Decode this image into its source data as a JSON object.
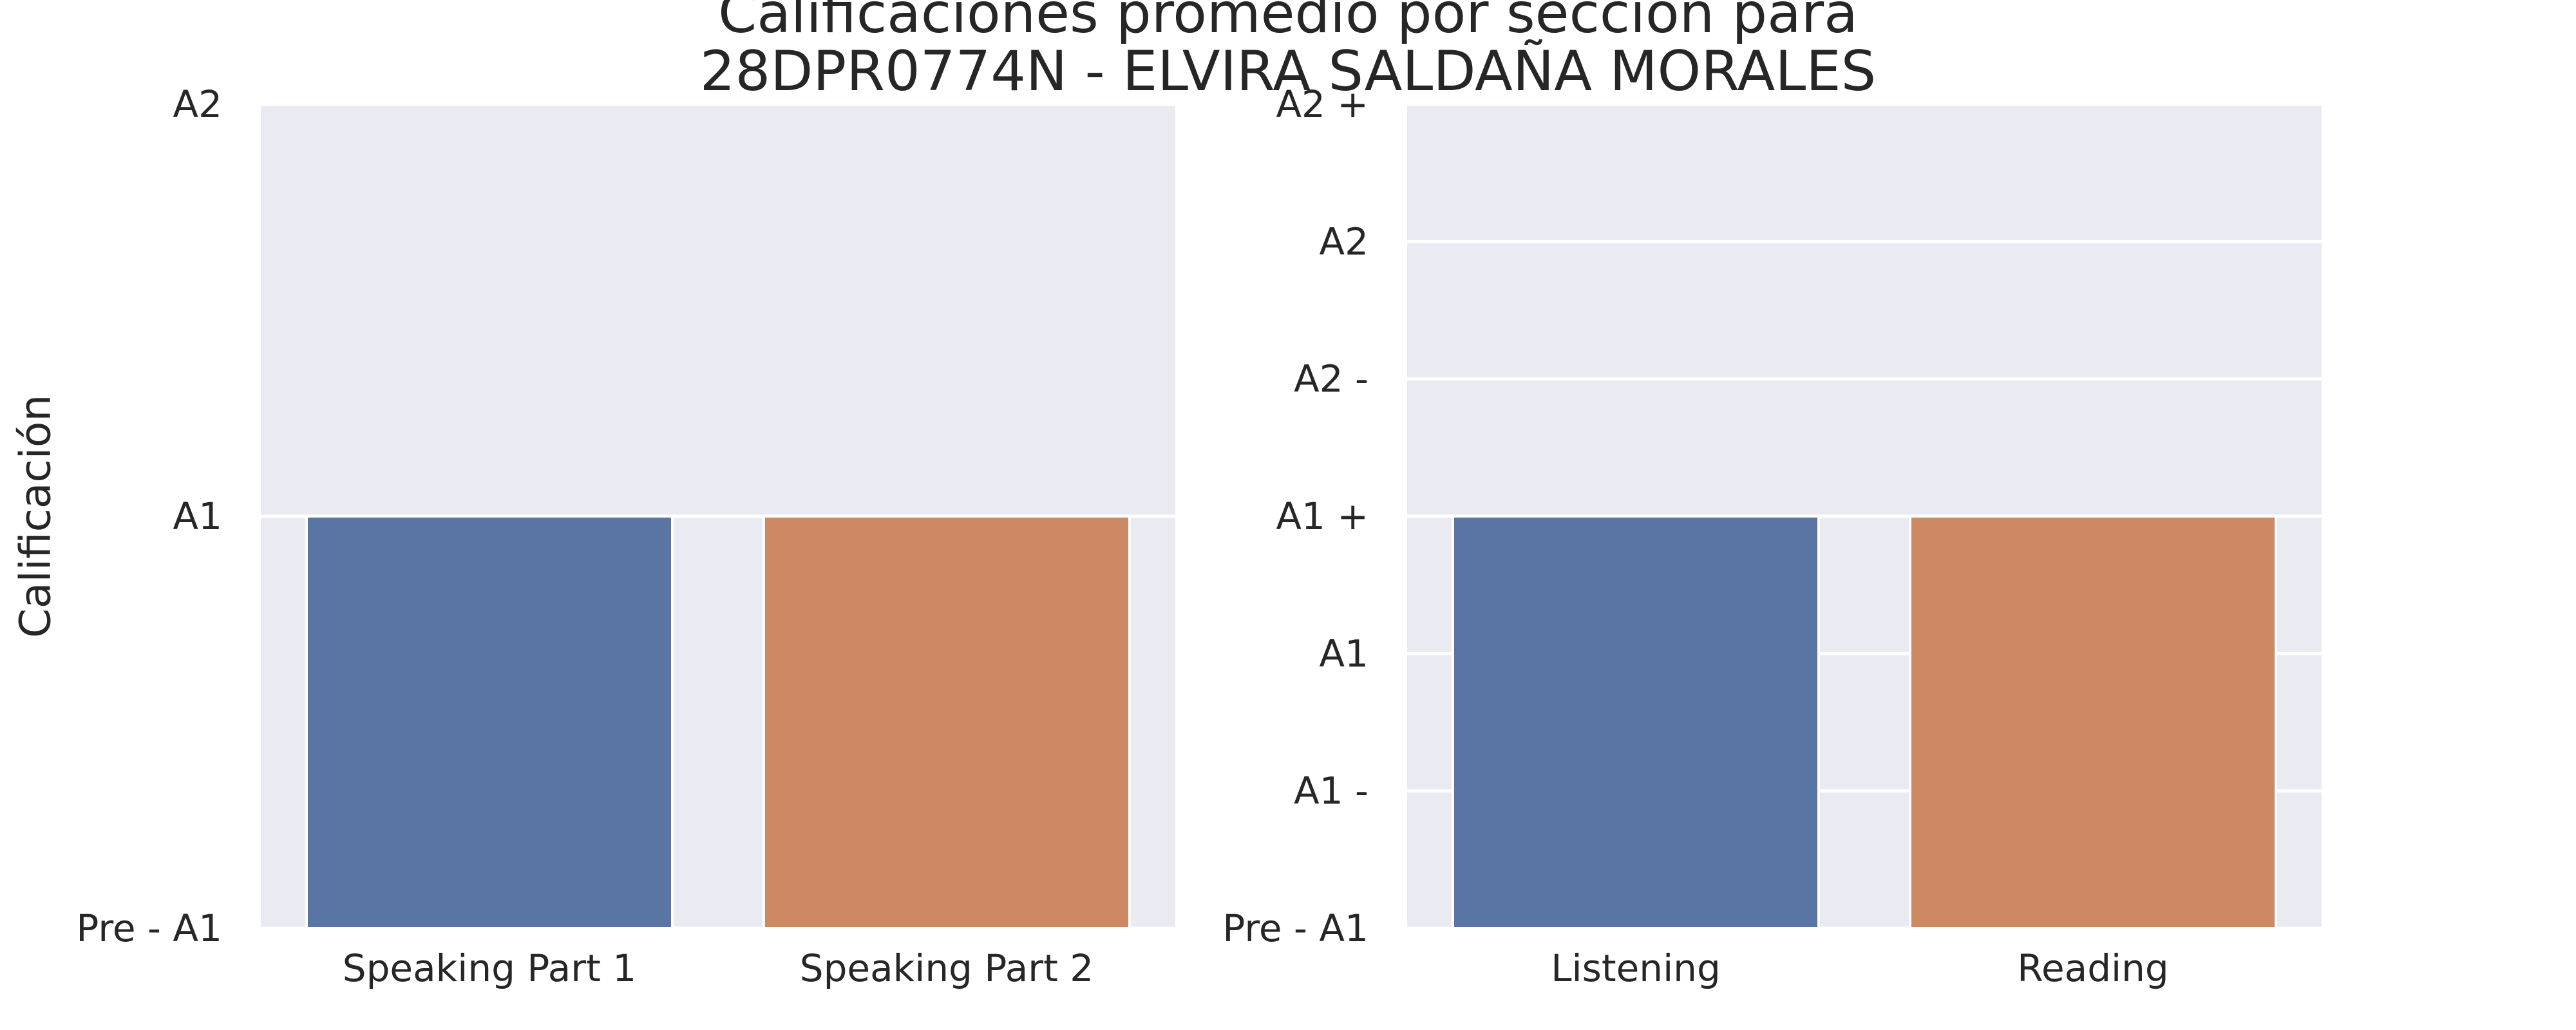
{
  "title_lines": [
    "Calificaciones promedio por sección para",
    "28DPR0774N - ELVIRA SALDAÑA MORALES"
  ],
  "colors": {
    "background": "#eaeaf2",
    "grid": "#ffffff",
    "series": [
      "#5975a4",
      "#cc8963"
    ]
  },
  "chart_data": [
    {
      "type": "bar",
      "title": "",
      "xlabel": "",
      "ylabel": "Calificación",
      "categories": [
        "Speaking Part 1",
        "Speaking Part 2"
      ],
      "values": [
        1,
        1
      ],
      "ylim": [
        0,
        2
      ],
      "yticks": [
        0,
        1,
        2
      ],
      "yticklabels": [
        "Pre - A1",
        "A1",
        "A2"
      ],
      "grid": true
    },
    {
      "type": "bar",
      "title": "",
      "xlabel": "",
      "ylabel": "",
      "categories": [
        "Listening",
        "Reading"
      ],
      "values": [
        3,
        3
      ],
      "ylim": [
        0,
        6
      ],
      "yticks": [
        0,
        1,
        2,
        3,
        4,
        5,
        6
      ],
      "yticklabels": [
        "Pre - A1",
        "A1 -",
        "A1",
        "A1 +",
        "A2 -",
        "A2",
        "A2 +"
      ],
      "grid": true
    }
  ]
}
